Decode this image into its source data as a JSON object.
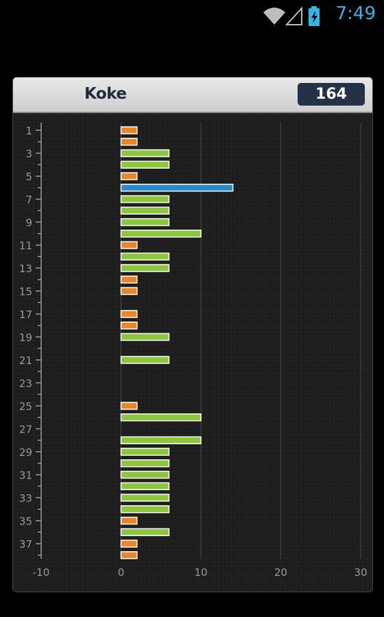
{
  "status_bar": {
    "time": "7:49",
    "icons": [
      "wifi-icon",
      "signal-icon",
      "battery-charging-icon"
    ],
    "accent_color": "#33b5e5"
  },
  "card": {
    "title": "Koke",
    "score": "164"
  },
  "chart_data": {
    "type": "bar",
    "orientation": "horizontal",
    "categories": [
      1,
      2,
      3,
      4,
      5,
      6,
      7,
      8,
      9,
      10,
      11,
      12,
      13,
      14,
      15,
      16,
      17,
      18,
      19,
      20,
      21,
      22,
      23,
      24,
      25,
      26,
      27,
      28,
      29,
      30,
      31,
      32,
      33,
      34,
      35,
      36,
      37,
      38
    ],
    "category_tick_labels": [
      "1",
      "3",
      "5",
      "7",
      "9",
      "11",
      "13",
      "15",
      "17",
      "19",
      "21",
      "23",
      "25",
      "27",
      "29",
      "31",
      "33",
      "35",
      "37"
    ],
    "values": [
      2,
      2,
      6,
      6,
      2,
      14,
      6,
      6,
      6,
      10,
      2,
      6,
      6,
      2,
      2,
      0,
      2,
      2,
      6,
      0,
      6,
      0,
      0,
      0,
      2,
      10,
      0,
      10,
      6,
      6,
      6,
      6,
      6,
      6,
      2,
      6,
      2,
      2
    ],
    "value_colors": {
      "2": "#e8872a",
      "6": "#8cc63f",
      "10": "#8cc63f",
      "14": "#2b8acb"
    },
    "xlim": [
      -10,
      30
    ],
    "x_ticks": [
      "-10",
      "0",
      "10",
      "20",
      "30"
    ],
    "grid": true
  }
}
